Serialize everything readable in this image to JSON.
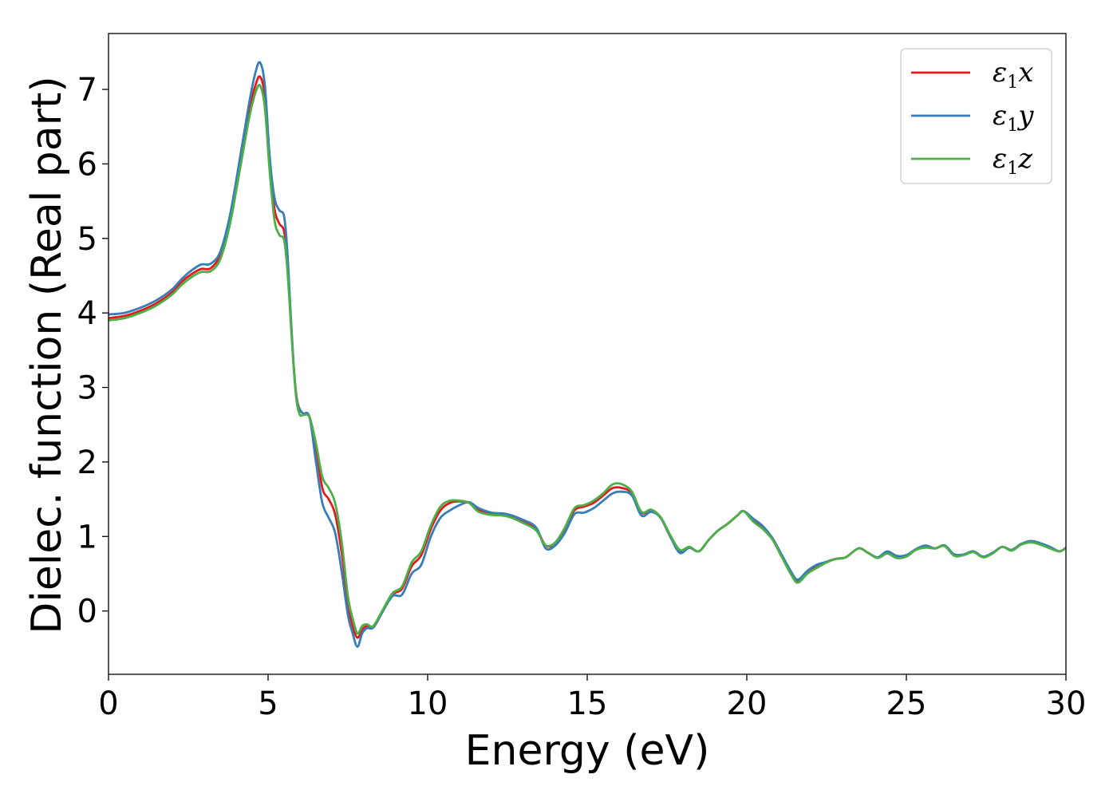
{
  "chart_data": {
    "type": "line",
    "title": "",
    "xlabel": "Energy (eV)",
    "ylabel": "Dielec. function (Real part)",
    "xlim": [
      0,
      30
    ],
    "ylim": [
      -0.85,
      7.75
    ],
    "xticks": [
      0,
      5,
      10,
      15,
      20,
      25,
      30
    ],
    "yticks": [
      0,
      1,
      2,
      3,
      4,
      5,
      6,
      7
    ],
    "grid": false,
    "legend_position": "top-right",
    "series": [
      {
        "name": "ε1x",
        "label_base": "ε",
        "label_sub": "1",
        "label_var": "x",
        "color": "#e41a1c",
        "x": [
          0,
          0.5,
          1,
          1.5,
          2,
          2.3,
          2.6,
          2.9,
          3.2,
          3.5,
          3.8,
          4.1,
          4.4,
          4.6,
          4.75,
          4.9,
          5.05,
          5.2,
          5.35,
          5.5,
          5.6,
          5.7,
          5.8,
          5.9,
          6.0,
          6.1,
          6.3,
          6.5,
          6.7,
          6.9,
          7.1,
          7.3,
          7.5,
          7.65,
          7.8,
          7.95,
          8.1,
          8.3,
          8.6,
          8.9,
          9.2,
          9.5,
          9.8,
          10.1,
          10.4,
          10.7,
          11.0,
          11.3,
          11.6,
          12.0,
          12.5,
          13.0,
          13.4,
          13.7,
          14.0,
          14.3,
          14.6,
          14.9,
          15.2,
          15.5,
          15.8,
          16.1,
          16.4,
          16.7,
          17.0,
          17.3,
          17.6,
          17.9,
          18.2,
          18.5,
          18.8,
          19.1,
          19.4,
          19.7,
          19.9,
          20.2,
          20.5,
          20.8,
          21.1,
          21.4,
          21.6,
          21.9,
          22.2,
          22.5,
          22.8,
          23.1,
          23.5,
          23.8,
          24.1,
          24.4,
          24.7,
          25.0,
          25.3,
          25.6,
          25.9,
          26.2,
          26.5,
          26.8,
          27.1,
          27.4,
          27.7,
          28.0,
          28.3,
          28.6,
          28.9,
          29.2,
          29.5,
          29.8,
          30.0
        ],
        "y": [
          3.93,
          3.96,
          4.03,
          4.13,
          4.28,
          4.42,
          4.52,
          4.59,
          4.6,
          4.78,
          5.25,
          5.95,
          6.7,
          7.05,
          7.17,
          6.9,
          6.0,
          5.4,
          5.2,
          5.1,
          4.7,
          4.0,
          3.3,
          2.85,
          2.7,
          2.65,
          2.6,
          2.2,
          1.65,
          1.5,
          1.3,
          0.8,
          0.1,
          -0.2,
          -0.36,
          -0.25,
          -0.2,
          -0.22,
          0.0,
          0.22,
          0.3,
          0.6,
          0.75,
          1.1,
          1.35,
          1.45,
          1.47,
          1.45,
          1.35,
          1.3,
          1.28,
          1.2,
          1.1,
          0.88,
          0.9,
          1.1,
          1.35,
          1.4,
          1.45,
          1.55,
          1.65,
          1.65,
          1.58,
          1.32,
          1.35,
          1.25,
          1.0,
          0.8,
          0.85,
          0.8,
          0.95,
          1.08,
          1.17,
          1.28,
          1.34,
          1.22,
          1.12,
          0.98,
          0.73,
          0.5,
          0.4,
          0.52,
          0.6,
          0.66,
          0.7,
          0.72,
          0.84,
          0.78,
          0.72,
          0.78,
          0.72,
          0.74,
          0.82,
          0.86,
          0.84,
          0.88,
          0.75,
          0.76,
          0.8,
          0.73,
          0.78,
          0.86,
          0.82,
          0.9,
          0.93,
          0.9,
          0.85,
          0.8,
          0.85
        ]
      },
      {
        "name": "ε1y",
        "label_base": "ε",
        "label_sub": "1",
        "label_var": "y",
        "color": "#377eb8",
        "x": [
          0,
          0.5,
          1,
          1.5,
          2,
          2.3,
          2.6,
          2.9,
          3.2,
          3.5,
          3.8,
          4.1,
          4.4,
          4.6,
          4.75,
          4.9,
          5.05,
          5.2,
          5.35,
          5.5,
          5.6,
          5.7,
          5.8,
          5.9,
          6.0,
          6.1,
          6.3,
          6.5,
          6.7,
          6.9,
          7.1,
          7.3,
          7.5,
          7.65,
          7.8,
          7.95,
          8.1,
          8.3,
          8.6,
          8.9,
          9.2,
          9.5,
          9.8,
          10.1,
          10.4,
          10.7,
          11.0,
          11.3,
          11.6,
          12.0,
          12.5,
          13.0,
          13.4,
          13.7,
          14.0,
          14.3,
          14.6,
          14.9,
          15.2,
          15.5,
          15.8,
          16.1,
          16.4,
          16.7,
          17.0,
          17.3,
          17.6,
          17.9,
          18.2,
          18.5,
          18.8,
          19.1,
          19.4,
          19.7,
          19.9,
          20.2,
          20.5,
          20.8,
          21.1,
          21.4,
          21.6,
          21.9,
          22.2,
          22.5,
          22.8,
          23.1,
          23.5,
          23.8,
          24.1,
          24.4,
          24.7,
          25.0,
          25.3,
          25.6,
          25.9,
          26.2,
          26.5,
          26.8,
          27.1,
          27.4,
          27.7,
          28.0,
          28.3,
          28.6,
          28.9,
          29.2,
          29.5,
          29.8,
          30.0
        ],
        "y": [
          3.98,
          4.0,
          4.07,
          4.17,
          4.32,
          4.46,
          4.57,
          4.65,
          4.66,
          4.82,
          5.3,
          6.03,
          6.8,
          7.22,
          7.36,
          7.05,
          6.1,
          5.55,
          5.38,
          5.3,
          4.85,
          4.05,
          3.3,
          2.82,
          2.7,
          2.65,
          2.6,
          2.0,
          1.45,
          1.25,
          1.05,
          0.55,
          -0.05,
          -0.3,
          -0.48,
          -0.3,
          -0.23,
          -0.22,
          0.0,
          0.2,
          0.22,
          0.5,
          0.62,
          1.0,
          1.25,
          1.35,
          1.42,
          1.46,
          1.38,
          1.32,
          1.3,
          1.22,
          1.12,
          0.84,
          0.88,
          1.05,
          1.3,
          1.32,
          1.38,
          1.48,
          1.58,
          1.6,
          1.55,
          1.28,
          1.33,
          1.25,
          1.0,
          0.78,
          0.85,
          0.8,
          0.95,
          1.08,
          1.17,
          1.28,
          1.34,
          1.24,
          1.14,
          0.98,
          0.75,
          0.52,
          0.42,
          0.54,
          0.62,
          0.66,
          0.7,
          0.72,
          0.84,
          0.78,
          0.72,
          0.8,
          0.74,
          0.75,
          0.83,
          0.88,
          0.84,
          0.88,
          0.76,
          0.76,
          0.8,
          0.73,
          0.78,
          0.86,
          0.82,
          0.9,
          0.94,
          0.91,
          0.86,
          0.8,
          0.85
        ]
      },
      {
        "name": "ε1z",
        "label_base": "ε",
        "label_sub": "1",
        "label_var": "z",
        "color": "#4daf4a",
        "x": [
          0,
          0.5,
          1,
          1.5,
          2,
          2.3,
          2.6,
          2.9,
          3.2,
          3.5,
          3.8,
          4.1,
          4.4,
          4.6,
          4.75,
          4.9,
          5.05,
          5.2,
          5.35,
          5.5,
          5.6,
          5.7,
          5.8,
          5.9,
          6.0,
          6.1,
          6.3,
          6.5,
          6.7,
          6.9,
          7.1,
          7.3,
          7.5,
          7.65,
          7.8,
          7.95,
          8.1,
          8.3,
          8.6,
          8.9,
          9.2,
          9.5,
          9.8,
          10.1,
          10.4,
          10.7,
          11.0,
          11.3,
          11.6,
          12.0,
          12.5,
          13.0,
          13.4,
          13.7,
          14.0,
          14.3,
          14.6,
          14.9,
          15.2,
          15.5,
          15.8,
          16.1,
          16.4,
          16.7,
          17.0,
          17.3,
          17.6,
          17.9,
          18.2,
          18.5,
          18.8,
          19.1,
          19.4,
          19.7,
          19.9,
          20.2,
          20.5,
          20.8,
          21.1,
          21.4,
          21.6,
          21.9,
          22.2,
          22.5,
          22.8,
          23.1,
          23.5,
          23.8,
          24.1,
          24.4,
          24.7,
          25.0,
          25.3,
          25.6,
          25.9,
          26.2,
          26.5,
          26.8,
          27.1,
          27.4,
          27.7,
          28.0,
          28.3,
          28.6,
          28.9,
          29.2,
          29.5,
          29.8,
          30.0
        ],
        "y": [
          3.9,
          3.93,
          4.0,
          4.1,
          4.25,
          4.38,
          4.48,
          4.55,
          4.56,
          4.72,
          5.18,
          5.88,
          6.6,
          6.95,
          7.05,
          6.75,
          5.9,
          5.25,
          5.05,
          4.98,
          4.6,
          3.95,
          3.28,
          2.8,
          2.63,
          2.63,
          2.6,
          2.25,
          1.8,
          1.65,
          1.45,
          0.95,
          0.2,
          -0.1,
          -0.3,
          -0.2,
          -0.18,
          -0.2,
          0.02,
          0.24,
          0.33,
          0.65,
          0.8,
          1.15,
          1.4,
          1.48,
          1.48,
          1.45,
          1.33,
          1.29,
          1.27,
          1.18,
          1.08,
          0.88,
          0.92,
          1.12,
          1.38,
          1.42,
          1.48,
          1.58,
          1.7,
          1.7,
          1.6,
          1.33,
          1.36,
          1.26,
          1.02,
          0.82,
          0.86,
          0.8,
          0.95,
          1.08,
          1.17,
          1.28,
          1.34,
          1.2,
          1.1,
          0.96,
          0.72,
          0.48,
          0.38,
          0.5,
          0.58,
          0.65,
          0.7,
          0.72,
          0.84,
          0.78,
          0.71,
          0.77,
          0.71,
          0.73,
          0.82,
          0.85,
          0.84,
          0.87,
          0.74,
          0.75,
          0.79,
          0.72,
          0.77,
          0.86,
          0.81,
          0.89,
          0.92,
          0.89,
          0.84,
          0.8,
          0.85
        ]
      }
    ]
  }
}
